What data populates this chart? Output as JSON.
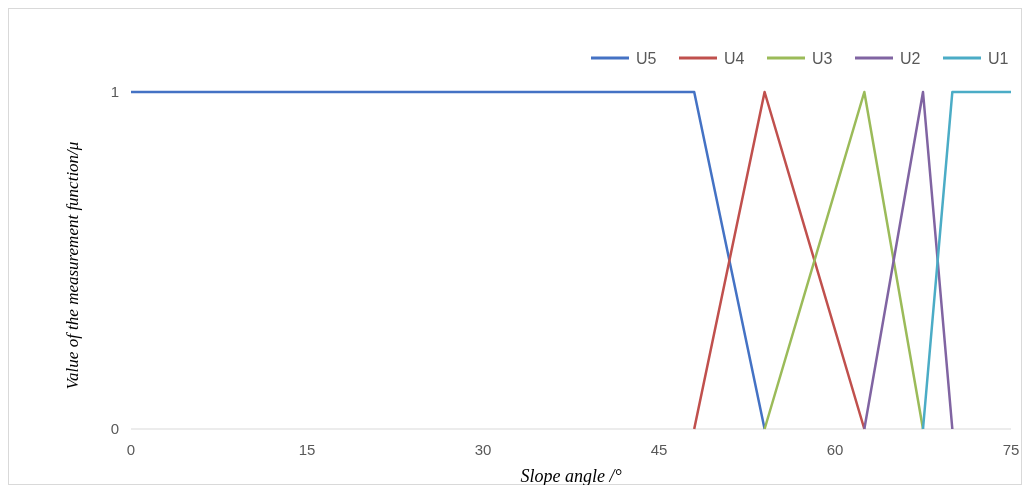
{
  "chart_data": {
    "type": "line",
    "xlabel": "Slope angle  /°",
    "ylabel": "Value of the measurement function/μ",
    "xlim": [
      0,
      75
    ],
    "xticks": [
      0,
      15,
      30,
      45,
      60,
      75
    ],
    "ylim": [
      0,
      1
    ],
    "yticks": [
      0,
      1
    ],
    "grid": false,
    "legend": "top right",
    "marker": "none",
    "line_style": "solid",
    "series": [
      {
        "name": "U5",
        "color": "#4472c4",
        "x": [
          0,
          48,
          54
        ],
        "values": [
          1,
          1,
          0
        ]
      },
      {
        "name": "U4",
        "color": "#c0504d",
        "x": [
          48,
          54,
          62.5
        ],
        "values": [
          0,
          1,
          0
        ]
      },
      {
        "name": "U3",
        "color": "#9bbb59",
        "x": [
          54,
          62.5,
          67.5
        ],
        "values": [
          0,
          1,
          0
        ]
      },
      {
        "name": "U2",
        "color": "#8064a2",
        "x": [
          62.5,
          67.5,
          70
        ],
        "values": [
          0,
          1,
          0
        ]
      },
      {
        "name": "U1",
        "color": "#4bacc6",
        "x": [
          67.5,
          70,
          75
        ],
        "values": [
          0,
          1,
          1
        ]
      }
    ]
  }
}
